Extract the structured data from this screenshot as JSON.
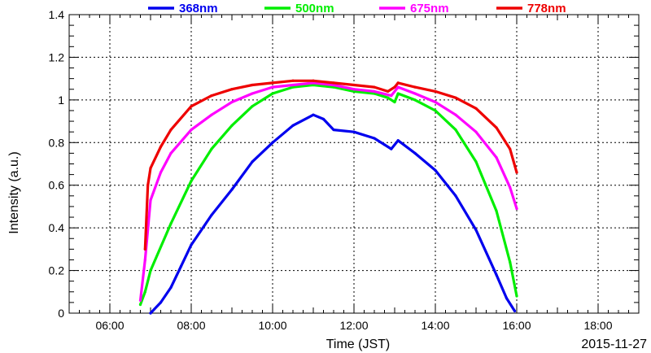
{
  "chart_data": {
    "type": "line",
    "title": "",
    "xlabel": "Time (JST)",
    "ylabel": "Intensity (a.u.)",
    "date_label": "2015-11-27",
    "xlim": [
      "05:00",
      "19:00"
    ],
    "ylim": [
      0,
      1.4
    ],
    "x_ticks": [
      "06:00",
      "08:00",
      "10:00",
      "12:00",
      "14:00",
      "16:00",
      "18:00"
    ],
    "y_ticks": [
      "0",
      "0.2",
      "0.4",
      "0.6",
      "0.8",
      "1",
      "1.2",
      "1.4"
    ],
    "grid": true,
    "legend_position": "top",
    "series": [
      {
        "name": "368nm",
        "color": "#0000ee",
        "points": [
          [
            "07:00",
            0.0
          ],
          [
            "07:15",
            0.05
          ],
          [
            "07:30",
            0.12
          ],
          [
            "07:45",
            0.22
          ],
          [
            "08:00",
            0.32
          ],
          [
            "08:30",
            0.46
          ],
          [
            "09:00",
            0.58
          ],
          [
            "09:30",
            0.71
          ],
          [
            "10:00",
            0.8
          ],
          [
            "10:30",
            0.88
          ],
          [
            "11:00",
            0.93
          ],
          [
            "11:15",
            0.91
          ],
          [
            "11:30",
            0.86
          ],
          [
            "12:00",
            0.85
          ],
          [
            "12:30",
            0.82
          ],
          [
            "12:45",
            0.79
          ],
          [
            "12:55",
            0.77
          ],
          [
            "13:05",
            0.81
          ],
          [
            "13:30",
            0.75
          ],
          [
            "14:00",
            0.67
          ],
          [
            "14:30",
            0.55
          ],
          [
            "15:00",
            0.39
          ],
          [
            "15:30",
            0.18
          ],
          [
            "15:45",
            0.07
          ],
          [
            "15:57",
            0.01
          ]
        ]
      },
      {
        "name": "500nm",
        "color": "#00ee00",
        "points": [
          [
            "06:45",
            0.04
          ],
          [
            "06:52",
            0.1
          ],
          [
            "07:00",
            0.2
          ],
          [
            "07:30",
            0.42
          ],
          [
            "08:00",
            0.62
          ],
          [
            "08:30",
            0.77
          ],
          [
            "09:00",
            0.88
          ],
          [
            "09:30",
            0.97
          ],
          [
            "10:00",
            1.03
          ],
          [
            "10:30",
            1.06
          ],
          [
            "11:00",
            1.07
          ],
          [
            "11:30",
            1.06
          ],
          [
            "12:00",
            1.04
          ],
          [
            "12:30",
            1.03
          ],
          [
            "12:50",
            1.01
          ],
          [
            "13:00",
            0.99
          ],
          [
            "13:05",
            1.03
          ],
          [
            "13:30",
            1.0
          ],
          [
            "14:00",
            0.95
          ],
          [
            "14:30",
            0.86
          ],
          [
            "15:00",
            0.71
          ],
          [
            "15:30",
            0.48
          ],
          [
            "15:50",
            0.24
          ],
          [
            "16:00",
            0.08
          ]
        ]
      },
      {
        "name": "675nm",
        "color": "#ff00ff",
        "points": [
          [
            "06:45",
            0.06
          ],
          [
            "06:52",
            0.25
          ],
          [
            "07:00",
            0.53
          ],
          [
            "07:15",
            0.66
          ],
          [
            "07:30",
            0.75
          ],
          [
            "08:00",
            0.86
          ],
          [
            "08:30",
            0.93
          ],
          [
            "09:00",
            0.99
          ],
          [
            "09:30",
            1.03
          ],
          [
            "10:00",
            1.06
          ],
          [
            "10:30",
            1.07
          ],
          [
            "11:00",
            1.08
          ],
          [
            "11:30",
            1.07
          ],
          [
            "12:00",
            1.05
          ],
          [
            "12:30",
            1.04
          ],
          [
            "12:55",
            1.02
          ],
          [
            "13:05",
            1.06
          ],
          [
            "13:30",
            1.03
          ],
          [
            "14:00",
            0.99
          ],
          [
            "14:30",
            0.93
          ],
          [
            "15:00",
            0.85
          ],
          [
            "15:30",
            0.73
          ],
          [
            "15:50",
            0.59
          ],
          [
            "16:00",
            0.49
          ]
        ]
      },
      {
        "name": "778nm",
        "color": "#ee0000",
        "points": [
          [
            "06:52",
            0.3
          ],
          [
            "06:56",
            0.6
          ],
          [
            "07:00",
            0.68
          ],
          [
            "07:15",
            0.78
          ],
          [
            "07:30",
            0.86
          ],
          [
            "08:00",
            0.97
          ],
          [
            "08:30",
            1.02
          ],
          [
            "09:00",
            1.05
          ],
          [
            "09:30",
            1.07
          ],
          [
            "10:00",
            1.08
          ],
          [
            "10:30",
            1.09
          ],
          [
            "11:00",
            1.09
          ],
          [
            "11:30",
            1.08
          ],
          [
            "12:00",
            1.07
          ],
          [
            "12:30",
            1.06
          ],
          [
            "12:50",
            1.04
          ],
          [
            "13:00",
            1.06
          ],
          [
            "13:05",
            1.08
          ],
          [
            "13:30",
            1.06
          ],
          [
            "14:00",
            1.04
          ],
          [
            "14:30",
            1.01
          ],
          [
            "15:00",
            0.96
          ],
          [
            "15:30",
            0.87
          ],
          [
            "15:50",
            0.77
          ],
          [
            "16:00",
            0.66
          ]
        ]
      }
    ]
  }
}
